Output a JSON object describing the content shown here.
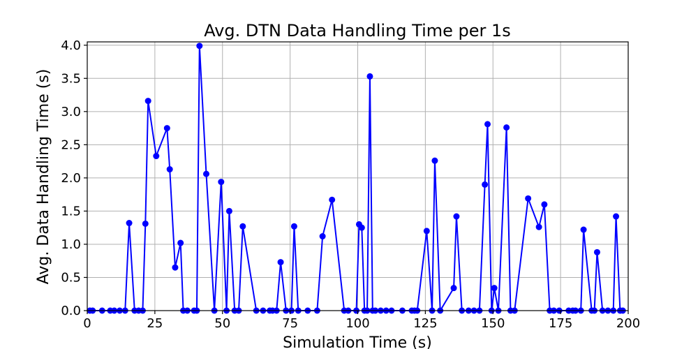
{
  "chart_data": {
    "type": "line",
    "title": "Avg. DTN Data Handling Time per 1s",
    "xlabel": "Simulation Time (s)",
    "ylabel": "Avg. Data Handling Time (s)",
    "xlim": [
      0,
      200
    ],
    "ylim": [
      0,
      4.05
    ],
    "xticks": [
      0,
      25,
      50,
      75,
      100,
      125,
      150,
      175,
      200
    ],
    "xtick_labels": [
      "0",
      "25",
      "50",
      "75",
      "100",
      "125",
      "150",
      "175",
      "200"
    ],
    "yticks": [
      0,
      0.5,
      1.0,
      1.5,
      2.0,
      2.5,
      3.0,
      3.5,
      4.0
    ],
    "ytick_labels": [
      "0.0",
      "0.5",
      "1.0",
      "1.5",
      "2.0",
      "2.5",
      "3.0",
      "3.5",
      "4.0"
    ],
    "grid": true,
    "series": [
      {
        "color": "#0000ff",
        "marker": "circle",
        "x": [
          1,
          2,
          5.5,
          8.5,
          10,
          12,
          14,
          15.5,
          17.5,
          19,
          20.5,
          21.5,
          22.5,
          25.5,
          29.5,
          30.5,
          32.5,
          34.5,
          35.5,
          37,
          39.5,
          40.5,
          41.5,
          44,
          47,
          49.5,
          51.5,
          52.5,
          54.5,
          56,
          57.5,
          62.5,
          65,
          67.5,
          68.5,
          70,
          71.5,
          73.5,
          75.5,
          76.5,
          78,
          81.5,
          85,
          87,
          90.5,
          95,
          96.5,
          99.5,
          100.5,
          101.5,
          102.5,
          103.5,
          104.5,
          105.5,
          106.5,
          108.5,
          110.5,
          112.5,
          116.5,
          120,
          121,
          122,
          125.5,
          127.5,
          128.5,
          130.5,
          135.5,
          136.5,
          138.5,
          141,
          143,
          145,
          147,
          148,
          149.5,
          150.5,
          152,
          155,
          156.5,
          158,
          163,
          167,
          169,
          171,
          172.5,
          174.5,
          178,
          179.5,
          180.5,
          182.5,
          183.5,
          186.5,
          187.5,
          188.5,
          190.5,
          192.5,
          194.5,
          195.5,
          197,
          198
        ],
        "y": [
          0,
          0,
          0,
          0,
          0,
          0,
          0,
          1.32,
          0,
          0,
          0,
          1.31,
          3.16,
          2.33,
          2.75,
          2.13,
          0.65,
          1.02,
          0,
          0,
          0,
          0,
          3.99,
          2.06,
          0,
          1.94,
          0,
          1.5,
          0,
          0,
          1.27,
          0,
          0,
          0,
          0,
          0,
          0.73,
          0,
          0,
          1.27,
          0,
          0,
          0,
          1.12,
          1.67,
          0,
          0,
          0,
          1.3,
          1.25,
          0,
          0,
          3.53,
          0,
          0,
          0,
          0,
          0,
          0,
          0,
          0,
          0,
          1.2,
          0,
          2.26,
          0,
          0.34,
          1.42,
          0,
          0,
          0,
          0,
          1.9,
          2.81,
          0,
          0.34,
          0,
          2.76,
          0,
          0,
          1.69,
          1.26,
          1.6,
          0,
          0,
          0,
          0,
          0,
          0,
          0,
          1.22,
          0,
          0,
          0.88,
          0,
          0,
          0,
          1.42,
          0,
          0
        ]
      }
    ]
  }
}
